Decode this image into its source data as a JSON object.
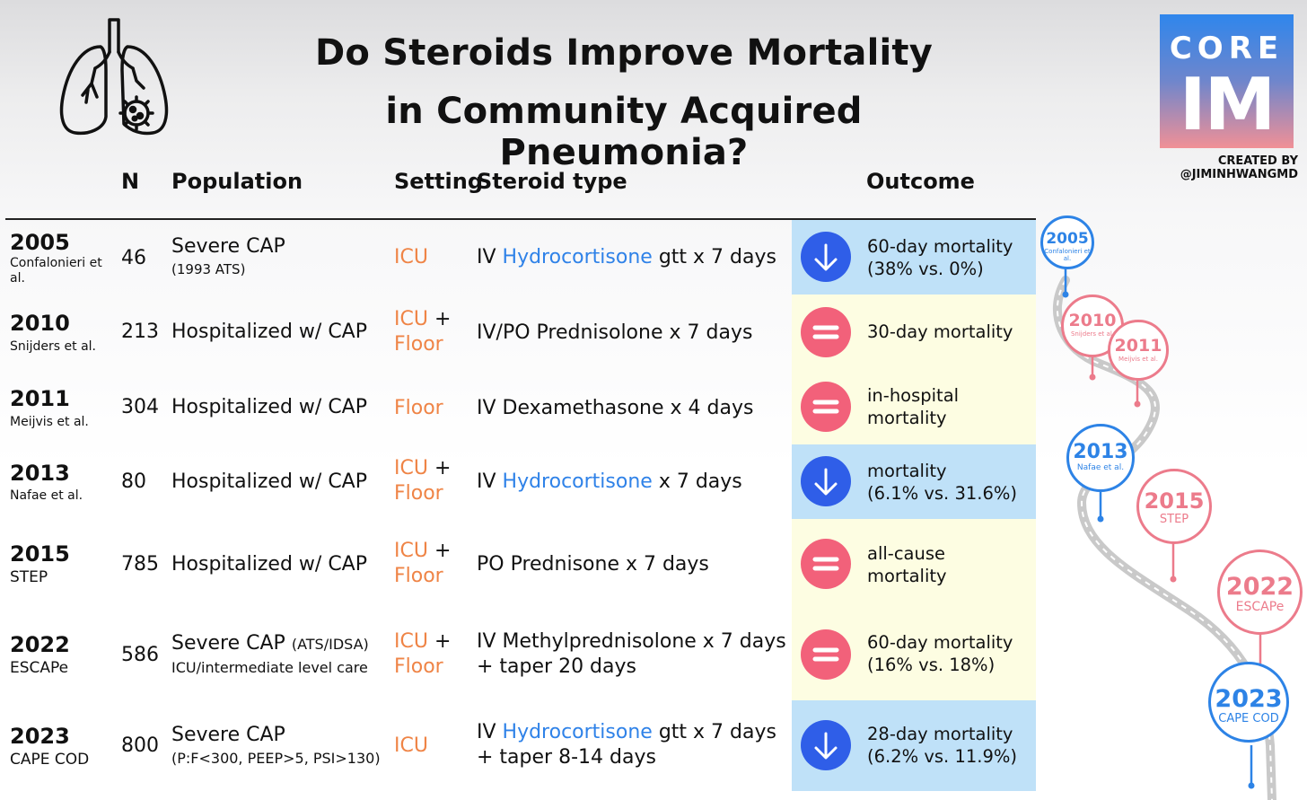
{
  "title": {
    "line1": "Do Steroids Improve Mortality",
    "line2": "in Community Acquired Pneumonia?"
  },
  "logo": {
    "line1": "CORE",
    "line2": "IM",
    "colors": [
      "#2f86ec",
      "#f19096"
    ]
  },
  "credit": "CREATED BY @JIMINHWANGMD",
  "icons": {
    "header": "lungs-virus-icon",
    "decrease": "down-arrow-icon",
    "no_change": "equals-icon"
  },
  "headers": {
    "n": "N",
    "population": "Population",
    "setting": "Setting",
    "steroid": "Steroid type",
    "outcome": "Outcome"
  },
  "rows": [
    {
      "year": "2005",
      "study": "Confalonieri et al.",
      "n": "46",
      "population": "Severe CAP",
      "population_sub": "(1993 ATS)",
      "setting": [
        "ICU"
      ],
      "steroid_pre": "IV ",
      "steroid_drug": "Hydrocortisone",
      "steroid_post": " gtt  x 7 days",
      "result": "decrease",
      "outcome": [
        "60-day mortality",
        "(38% vs. 0%)"
      ]
    },
    {
      "year": "2010",
      "study": "Snijders et al.",
      "n": "213",
      "population": "Hospitalized w/ CAP",
      "setting": [
        "ICU",
        "Floor"
      ],
      "steroid_pre": "IV/PO Prednisolone x 7 days",
      "result": "no change",
      "outcome": [
        "30-day mortality"
      ]
    },
    {
      "year": "2011",
      "study": "Meijvis et al.",
      "n": "304",
      "population": "Hospitalized w/ CAP",
      "setting": [
        "Floor"
      ],
      "steroid_pre": "IV Dexamethasone x 4 days",
      "result": "no change",
      "outcome": [
        "in-hospital",
        "mortality"
      ]
    },
    {
      "year": "2013",
      "study": "Nafae et al.",
      "n": "80",
      "population": "Hospitalized w/ CAP",
      "setting": [
        "ICU",
        "Floor"
      ],
      "steroid_pre": "IV ",
      "steroid_drug": "Hydrocortisone",
      "steroid_post": " x 7 days",
      "result": "decrease",
      "outcome": [
        "mortality",
        "(6.1% vs. 31.6%)"
      ]
    },
    {
      "year": "2015",
      "study": "STEP",
      "n": "785",
      "population": "Hospitalized w/ CAP",
      "setting": [
        "ICU",
        "Floor"
      ],
      "steroid_pre": "PO Prednisone x 7 days",
      "result": "no change",
      "outcome": [
        "all-cause",
        "mortality"
      ]
    },
    {
      "year": "2022",
      "study": "ESCAPe",
      "n": "586",
      "population": "Severe CAP",
      "population_inline": "(ATS/IDSA)",
      "population_sub": "ICU/intermediate level care",
      "setting": [
        "ICU",
        "Floor"
      ],
      "steroid_pre": "IV Methylprednisolone x 7 days",
      "steroid_line2": "+ taper 20 days",
      "result": "no change",
      "outcome": [
        "60-day mortality",
        "(16% vs. 18%)"
      ]
    },
    {
      "year": "2023",
      "study": "CAPE COD",
      "n": "800",
      "population": "Severe CAP",
      "population_sub": "(P:F<300, PEEP>5, PSI>130)",
      "setting": [
        "ICU"
      ],
      "steroid_pre": "IV ",
      "steroid_drug": "Hydrocortisone",
      "steroid_post": " gtt x 7 days",
      "steroid_line2": "+ taper 8-14 days",
      "result": "decrease",
      "outcome": [
        "28-day mortality",
        "(6.2% vs. 11.9%)"
      ]
    }
  ],
  "timeline": [
    {
      "year": "2005",
      "label": "Confalonieri et al.",
      "color": "#2d83e6"
    },
    {
      "year": "2010",
      "label": "Snijders et al.",
      "color": "#ec7b8b"
    },
    {
      "year": "2011",
      "label": "Meijvis et al.",
      "color": "#ec7b8b"
    },
    {
      "year": "2013",
      "label": "Nafae et al.",
      "color": "#2d83e6"
    },
    {
      "year": "2015",
      "label": "STEP",
      "color": "#ec7b8b"
    },
    {
      "year": "2022",
      "label": "ESCAPe",
      "color": "#ec7b8b"
    },
    {
      "year": "2023",
      "label": "CAPE COD",
      "color": "#2d83e6"
    }
  ]
}
